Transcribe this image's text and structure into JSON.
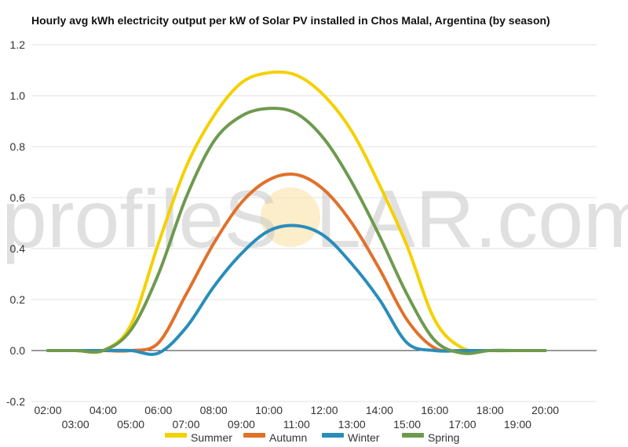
{
  "chart_data": {
    "type": "line",
    "title": "Hourly avg kWh electricity output per kW of Solar PV installed in Chos Malal, Argentina (by season)",
    "xlabel": "",
    "ylabel": "",
    "x": [
      "02:00",
      "03:00",
      "04:00",
      "05:00",
      "06:00",
      "07:00",
      "08:00",
      "09:00",
      "10:00",
      "11:00",
      "12:00",
      "13:00",
      "14:00",
      "15:00",
      "16:00",
      "17:00",
      "18:00",
      "19:00",
      "20:00"
    ],
    "ylim": [
      -0.2,
      1.2
    ],
    "yticks": [
      "-0.2",
      "0.0",
      "0.2",
      "0.4",
      "0.6",
      "0.8",
      "1.0",
      "1.2"
    ],
    "grid": true,
    "legend_position": "bottom",
    "series": [
      {
        "name": "Summer",
        "color": "#f5d000",
        "values": [
          0,
          0,
          0,
          0.1,
          0.42,
          0.72,
          0.92,
          1.05,
          1.09,
          1.08,
          1.0,
          0.86,
          0.65,
          0.41,
          0.12,
          0.01,
          0,
          0,
          0
        ]
      },
      {
        "name": "Autumn",
        "color": "#e0712a",
        "values": [
          0,
          0,
          0,
          0,
          0.03,
          0.22,
          0.42,
          0.58,
          0.67,
          0.69,
          0.63,
          0.5,
          0.32,
          0.12,
          0.01,
          0,
          0,
          0,
          0
        ]
      },
      {
        "name": "Winter",
        "color": "#2a8dba",
        "values": [
          0,
          0,
          0,
          0,
          -0.01,
          0.09,
          0.25,
          0.38,
          0.47,
          0.49,
          0.45,
          0.34,
          0.2,
          0.03,
          0,
          0,
          0,
          0,
          0
        ]
      },
      {
        "name": "Spring",
        "color": "#6e9a4f",
        "values": [
          0,
          0,
          0,
          0.08,
          0.3,
          0.6,
          0.82,
          0.92,
          0.95,
          0.93,
          0.83,
          0.66,
          0.45,
          0.22,
          0.04,
          -0.01,
          0,
          0,
          0
        ]
      }
    ]
  },
  "watermark": {
    "left": "profileS",
    "right": "LAR.com"
  }
}
